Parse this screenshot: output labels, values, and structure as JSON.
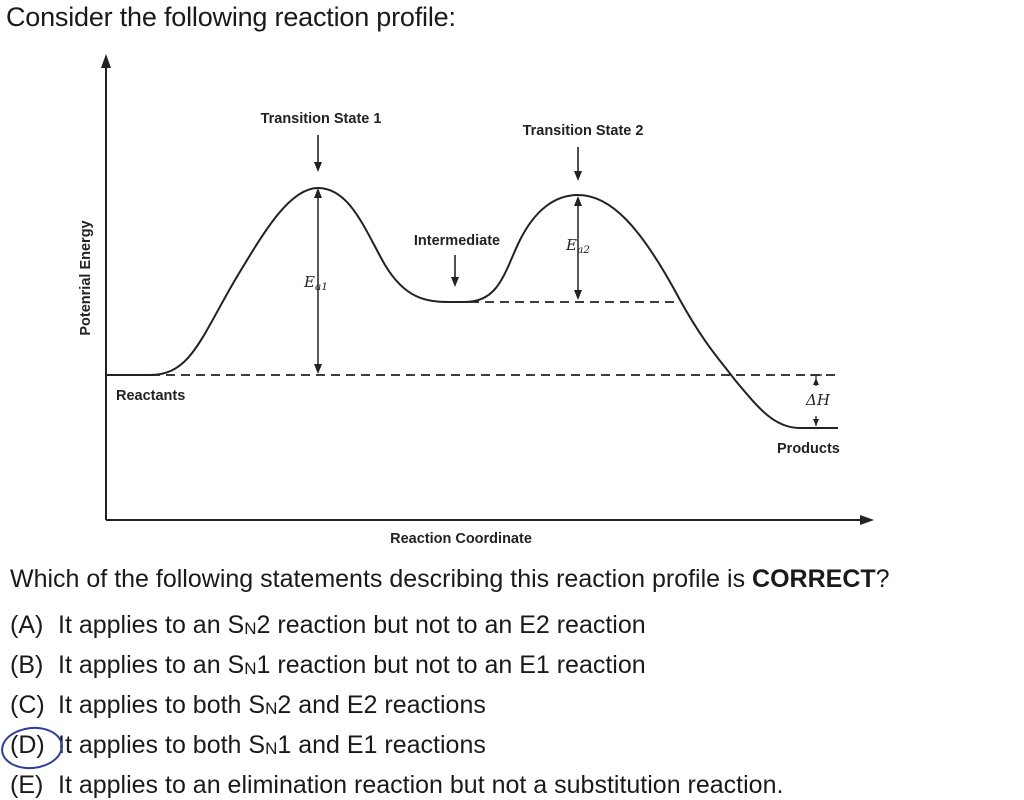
{
  "prompt": "Consider the following reaction profile:",
  "diagram": {
    "y_axis_label": "Potenrial Energy",
    "x_axis_label": "Reaction Coordinate",
    "labels": {
      "ts1": "Transition State 1",
      "ts2": "Transition State 2",
      "intermediate": "Intermediate",
      "reactants": "Reactants",
      "products": "Products",
      "ea1": "Ea1",
      "ea2": "Ea2",
      "dh": "ΔH"
    }
  },
  "question": {
    "text": "Which of the following statements describing this reaction profile is ",
    "emphasis": "CORRECT",
    "end": "?"
  },
  "options": [
    {
      "letter": "(A)",
      "pre": "It applies to an S",
      "sub": "N",
      "post": "2 reaction but not to an E2 reaction"
    },
    {
      "letter": "(B)",
      "pre": "It applies to an S",
      "sub": "N",
      "post": "1 reaction but not to an E1 reaction"
    },
    {
      "letter": "(C)",
      "pre": "It applies to both S",
      "sub": "N",
      "post": "2 and E2 reactions"
    },
    {
      "letter": "(D)",
      "pre": "It applies to both S",
      "sub": "N",
      "post": "1 and E1 reactions"
    },
    {
      "letter": "(E)",
      "pre": "It applies to an elimination reaction but not a substitution reaction.",
      "sub": "",
      "post": ""
    }
  ],
  "selected_answer": "(D)",
  "colors": {
    "ink": "#222222",
    "answer_circle": "#2a3f9a"
  }
}
